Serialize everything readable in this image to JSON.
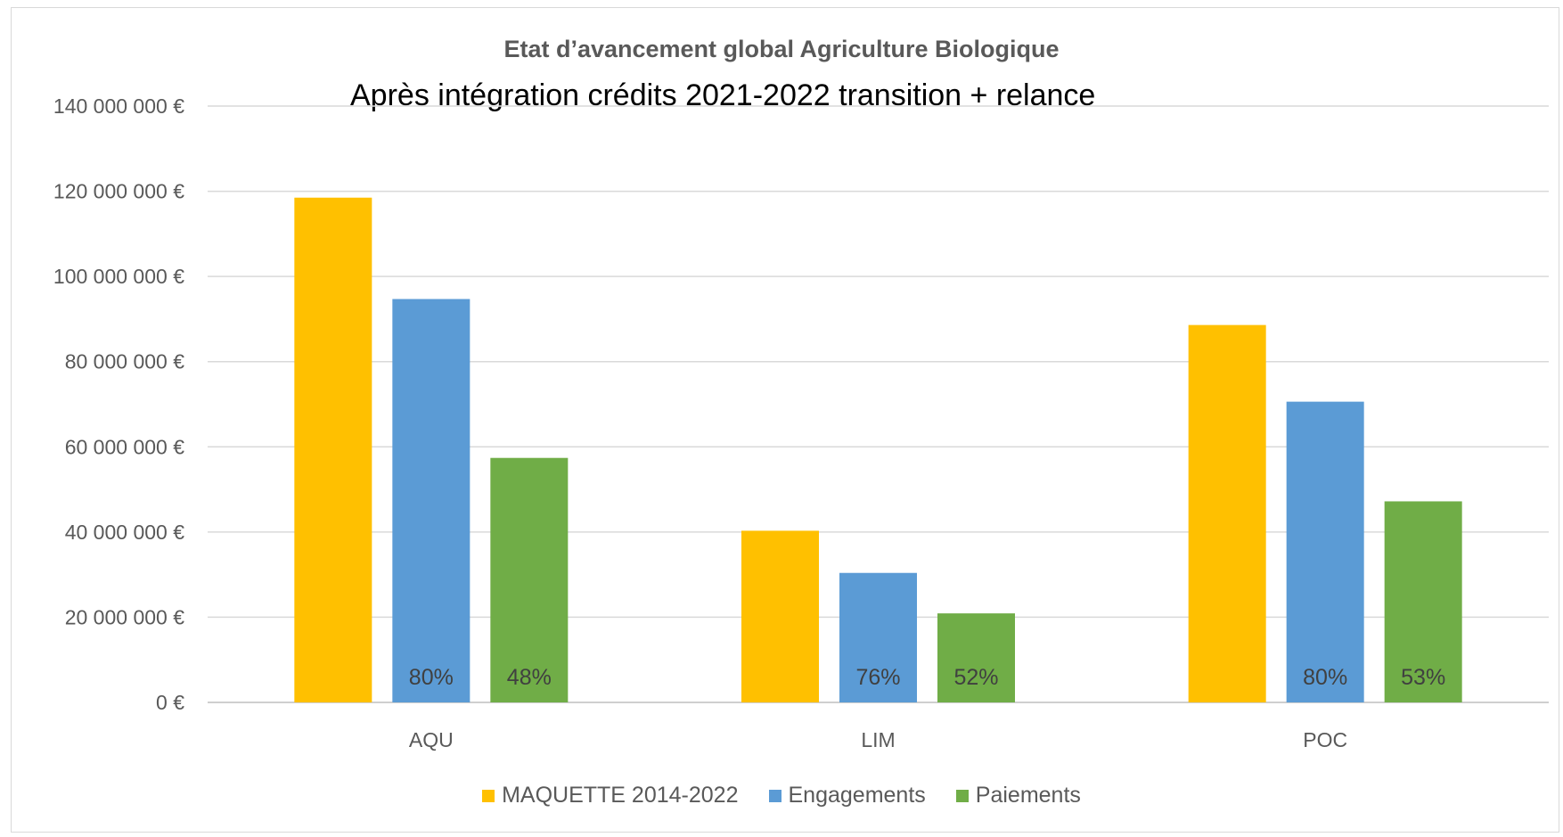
{
  "chart_data": {
    "type": "bar",
    "title": "Etat d’avancement global Agriculture Biologique",
    "subtitle": "Après intégration crédits 2021-2022 transition + relance",
    "categories": [
      "AQU",
      "LIM",
      "POC"
    ],
    "series": [
      {
        "name": "MAQUETTE 2014-2022",
        "color": "#FFC000",
        "values": [
          118500000,
          40300000,
          88600000
        ],
        "labels": [
          "",
          "",
          ""
        ]
      },
      {
        "name": "Engagements",
        "color": "#5B9BD5",
        "values": [
          94700000,
          30400000,
          70600000
        ],
        "labels": [
          "80%",
          "76%",
          "80%"
        ]
      },
      {
        "name": "Paiements",
        "color": "#70AD47",
        "values": [
          57400000,
          20900000,
          47200000
        ],
        "labels": [
          "48%",
          "52%",
          "53%"
        ]
      }
    ],
    "ylim": [
      0,
      140000000
    ],
    "yticks": [
      0,
      20000000,
      40000000,
      60000000,
      80000000,
      100000000,
      120000000,
      140000000
    ],
    "ytick_labels": [
      "0 €",
      "20 000 000 €",
      "40 000 000 €",
      "60 000 000 €",
      "80 000 000 €",
      "100 000 000 €",
      "120 000 000 €",
      "140 000 000 €"
    ],
    "grid": true,
    "legend_position": "bottom"
  }
}
